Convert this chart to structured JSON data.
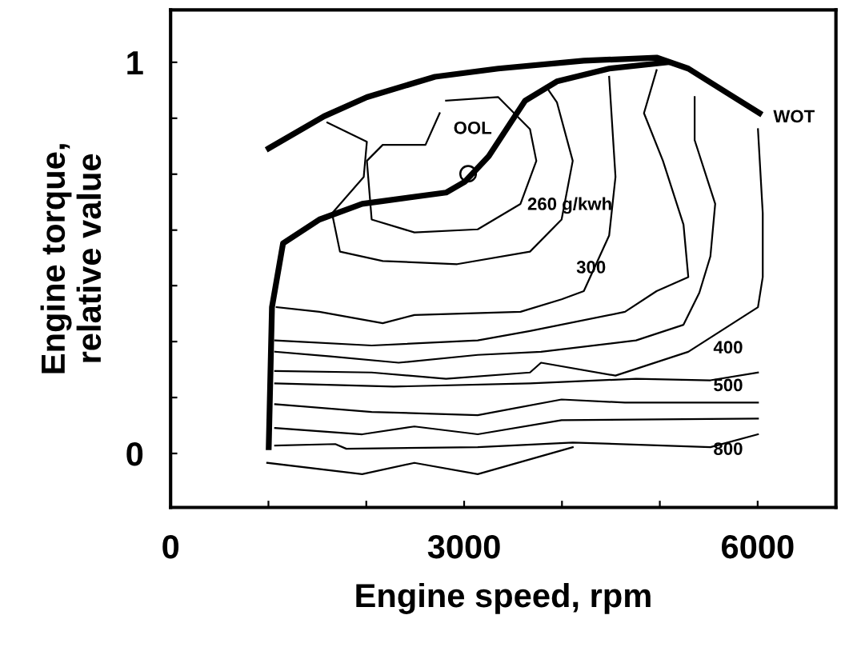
{
  "chart_data": {
    "type": "line",
    "xlabel": "Engine speed, rpm",
    "ylabel": "Engine torque,\nrelative value",
    "xlim": [
      0,
      6800
    ],
    "ylim": [
      -0.138,
      1.134
    ],
    "xticks": [
      0,
      {
        "value": 1000,
        "label": null
      },
      {
        "value": 2000,
        "label": null
      },
      3000,
      {
        "value": 4000,
        "label": null
      },
      {
        "value": 5000,
        "label": null
      },
      6000
    ],
    "yticks": [
      0,
      {
        "value": 0.143,
        "label": null
      },
      {
        "value": 0.286,
        "label": null
      },
      {
        "value": 0.429,
        "label": null
      },
      {
        "value": 0.571,
        "label": null
      },
      {
        "value": 0.714,
        "label": null
      },
      {
        "value": 0.857,
        "label": null
      },
      1
    ],
    "grid": false,
    "legend": false,
    "marker": "none",
    "line_style": "solid",
    "series": [
      {
        "color": "#000000",
        "x": [
          1003,
          1036,
          1149,
          1521,
          1958,
          2815,
          3009,
          3252,
          3463,
          3624,
          3948,
          4482,
          5081
        ],
        "values": [
          0.016,
          0.374,
          0.537,
          0.598,
          0.638,
          0.667,
          0.695,
          0.76,
          0.841,
          0.902,
          0.951,
          0.984,
          1.0
        ]
      },
      {
        "color": "#000000",
        "x": [
          1003,
          1569,
          2006,
          2702,
          3349,
          4223,
          4967,
          5291,
          5679,
          6019
        ],
        "values": [
          0.78,
          0.862,
          0.911,
          0.963,
          0.984,
          1.004,
          1.012,
          0.984,
          0.923,
          0.87
        ]
      },
      {
        "color": "#000000",
        "x": [
          2815,
          3349,
          3673,
          3738,
          3576,
          3139,
          2492,
          2055,
          2006,
          2168,
          2605,
          2750
        ],
        "values": [
          0.902,
          0.911,
          0.829,
          0.748,
          0.638,
          0.573,
          0.565,
          0.598,
          0.748,
          0.789,
          0.789,
          0.87
        ]
      },
      {
        "color": "#000000",
        "x": [
          1602,
          2006,
          1974,
          1650,
          1731,
          2168,
          2929,
          3673,
          3996,
          4110,
          3948,
          3835
        ],
        "values": [
          0.846,
          0.797,
          0.707,
          0.614,
          0.516,
          0.492,
          0.484,
          0.516,
          0.598,
          0.748,
          0.898,
          0.939
        ]
      },
      {
        "color": "#000000",
        "x": [
          1084,
          1521,
          2168,
          2492,
          3576,
          3996,
          4223,
          4482,
          4547,
          4482
        ],
        "values": [
          0.374,
          0.362,
          0.333,
          0.354,
          0.362,
          0.394,
          0.415,
          0.557,
          0.707,
          0.963
        ]
      },
      {
        "color": "#000000",
        "x": [
          1068,
          2055,
          3139,
          3673,
          4644,
          4967,
          5291,
          5242,
          5032,
          4838,
          4967
        ],
        "values": [
          0.289,
          0.276,
          0.289,
          0.313,
          0.362,
          0.415,
          0.451,
          0.585,
          0.748,
          0.87,
          0.98
        ]
      },
      {
        "color": "#000000",
        "x": [
          1068,
          1634,
          2330,
          3139,
          3786,
          4757,
          5242,
          5404,
          5517,
          5566,
          5356,
          5356
        ],
        "values": [
          0.26,
          0.248,
          0.232,
          0.252,
          0.26,
          0.289,
          0.329,
          0.411,
          0.504,
          0.638,
          0.801,
          0.911
        ]
      },
      {
        "color": "#000000",
        "x": [
          1068,
          2055,
          2815,
          3673,
          3786,
          4547,
          5291,
          6003,
          6052,
          6052,
          6003
        ],
        "values": [
          0.211,
          0.207,
          0.191,
          0.207,
          0.232,
          0.199,
          0.26,
          0.374,
          0.451,
          0.614,
          0.829
        ]
      },
      {
        "color": "#000000",
        "x": [
          1068,
          2281,
          3673,
          4757,
          5517,
          6003
        ],
        "values": [
          0.179,
          0.171,
          0.179,
          0.191,
          0.187,
          0.207
        ]
      },
      {
        "color": "#000000",
        "x": [
          1068,
          2055,
          3139,
          3996,
          4644,
          6003
        ],
        "values": [
          0.126,
          0.106,
          0.098,
          0.138,
          0.13,
          0.13
        ]
      },
      {
        "color": "#000000",
        "x": [
          1068,
          1958,
          2492,
          3139,
          3996,
          6003
        ],
        "values": [
          0.065,
          0.049,
          0.069,
          0.049,
          0.085,
          0.089
        ]
      },
      {
        "color": "#000000",
        "x": [
          1068,
          1683,
          1796,
          3139,
          4110,
          5517,
          6003
        ],
        "values": [
          0.02,
          0.024,
          0.012,
          0.016,
          0.028,
          0.016,
          0.049
        ]
      },
      {
        "color": "#000000",
        "x": [
          987,
          1958,
          2492,
          3139,
          4110
        ],
        "values": [
          -0.024,
          -0.053,
          -0.024,
          -0.053,
          0.016
        ]
      },
      {
        "type": "scatter",
        "marker": "circle",
        "color": "#000000",
        "x": [
          3041
        ],
        "values": [
          0.715
        ]
      }
    ],
    "annotations": [
      "OOL",
      "WOT",
      "260 g/kwh",
      "300",
      "400",
      "500",
      "800"
    ]
  }
}
